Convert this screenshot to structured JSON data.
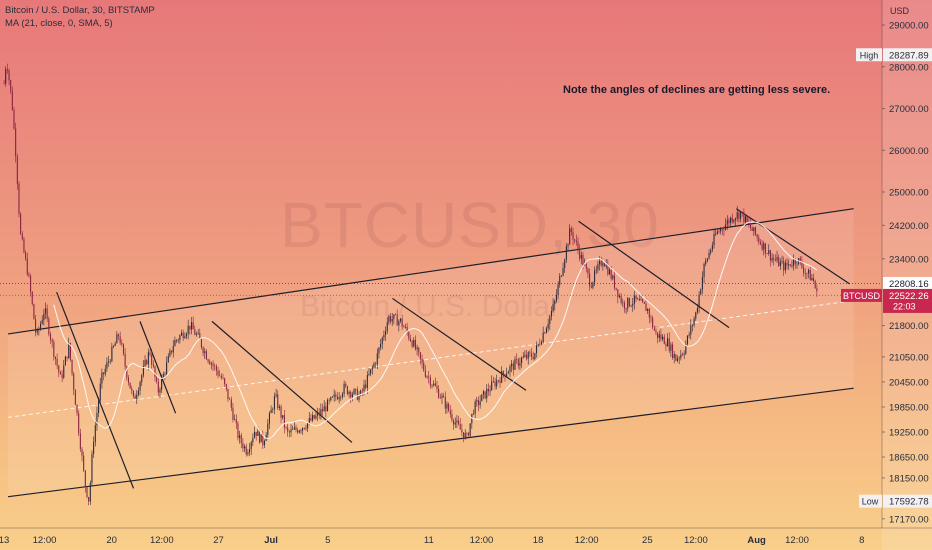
{
  "legend": {
    "title": "Bitcoin / U.S. Dollar, 30, BITSTAMP",
    "indicator": "MA (21, close, 0, SMA, 5)"
  },
  "annotation": "Note the angles of declines are getting less severe.",
  "watermark": {
    "main": "BTCUSD, 30",
    "sub": "Bitcoin / U.S. Dollar"
  },
  "colors": {
    "candle_up": "#2e2a3a",
    "candle_down": "#8b2440",
    "ma": "#ffffff",
    "line": "#1e1e2a",
    "price_tag": "#c8284f"
  },
  "chart_data": {
    "type": "candlestick",
    "symbol": "BTCUSD",
    "price_axis": {
      "unit_label": "USD",
      "ticks": [
        29000,
        28000,
        27000,
        26000,
        25000,
        24200,
        23400,
        21800,
        21050,
        20450,
        19850,
        19250,
        18650,
        18150,
        17170
      ],
      "ylim": [
        16950,
        29600
      ]
    },
    "time_axis": {
      "labels": [
        "13",
        "12:00",
        "20",
        "12:00",
        "27",
        "Jul",
        "5",
        "11",
        "12:00",
        "18",
        "12:00",
        "25",
        "12:00",
        "Aug",
        "12:00",
        "8"
      ],
      "positions": [
        0,
        0.5,
        1.33,
        1.95,
        2.65,
        3.3,
        4.0,
        5.25,
        5.9,
        6.6,
        7.2,
        7.95,
        8.55,
        9.3,
        9.8,
        10.6
      ],
      "xlim": [
        -0.05,
        10.85
      ]
    },
    "markers": {
      "high": {
        "label": "High",
        "value": "28287.89"
      },
      "low": {
        "label": "Low",
        "value": "17592.78"
      },
      "level": {
        "value": "22808.16"
      },
      "last": {
        "symbol": "BTCUSD",
        "value": "22522.26",
        "countdown": "22:03"
      }
    },
    "series": {
      "anchors": [
        [
          0,
          27600
        ],
        [
          0.03,
          28200
        ],
        [
          0.1,
          27100
        ],
        [
          0.15,
          25800
        ],
        [
          0.2,
          24000
        ],
        [
          0.3,
          23000
        ],
        [
          0.4,
          21500
        ],
        [
          0.5,
          22200
        ],
        [
          0.6,
          21300
        ],
        [
          0.7,
          20500
        ],
        [
          0.8,
          21300
        ],
        [
          0.9,
          19700
        ],
        [
          1.0,
          18000
        ],
        [
          1.05,
          17600
        ],
        [
          1.1,
          19000
        ],
        [
          1.2,
          20500
        ],
        [
          1.3,
          21000
        ],
        [
          1.42,
          21600
        ],
        [
          1.5,
          20800
        ],
        [
          1.6,
          20000
        ],
        [
          1.7,
          20600
        ],
        [
          1.8,
          21200
        ],
        [
          1.9,
          20200
        ],
        [
          2.0,
          20800
        ],
        [
          2.1,
          21400
        ],
        [
          2.3,
          21800
        ],
        [
          2.4,
          21500
        ],
        [
          2.5,
          21100
        ],
        [
          2.7,
          20500
        ],
        [
          2.8,
          19900
        ],
        [
          2.9,
          19100
        ],
        [
          3.0,
          18800
        ],
        [
          3.1,
          19300
        ],
        [
          3.2,
          19000
        ],
        [
          3.35,
          20100
        ],
        [
          3.5,
          19200
        ],
        [
          3.7,
          19400
        ],
        [
          3.85,
          19600
        ],
        [
          4.0,
          19900
        ],
        [
          4.2,
          20300
        ],
        [
          4.4,
          20100
        ],
        [
          4.6,
          21000
        ],
        [
          4.75,
          22000
        ],
        [
          4.9,
          21900
        ],
        [
          5.05,
          21400
        ],
        [
          5.2,
          20700
        ],
        [
          5.4,
          20100
        ],
        [
          5.6,
          19400
        ],
        [
          5.72,
          19100
        ],
        [
          5.8,
          19800
        ],
        [
          6.0,
          20300
        ],
        [
          6.2,
          20700
        ],
        [
          6.4,
          21000
        ],
        [
          6.55,
          21100
        ],
        [
          6.7,
          21800
        ],
        [
          6.8,
          22300
        ],
        [
          6.92,
          23400
        ],
        [
          7.0,
          24100
        ],
        [
          7.1,
          23600
        ],
        [
          7.25,
          22800
        ],
        [
          7.4,
          23400
        ],
        [
          7.5,
          23000
        ],
        [
          7.65,
          22300
        ],
        [
          7.8,
          22400
        ],
        [
          7.95,
          22200
        ],
        [
          8.05,
          21600
        ],
        [
          8.2,
          21400
        ],
        [
          8.3,
          21000
        ],
        [
          8.4,
          21200
        ],
        [
          8.55,
          22100
        ],
        [
          8.65,
          23200
        ],
        [
          8.8,
          24000
        ],
        [
          9.0,
          24400
        ],
        [
          9.1,
          24500
        ],
        [
          9.2,
          24200
        ],
        [
          9.35,
          23800
        ],
        [
          9.5,
          23400
        ],
        [
          9.65,
          23200
        ],
        [
          9.8,
          23400
        ],
        [
          9.9,
          23100
        ],
        [
          10.0,
          22900
        ],
        [
          10.05,
          22500
        ]
      ],
      "ma_start": 0.6
    },
    "drawings": {
      "channel_upper": [
        [
          0.05,
          21600
        ],
        [
          10.5,
          24600
        ]
      ],
      "channel_lower": [
        [
          0.05,
          17700
        ],
        [
          10.5,
          20300
        ]
      ],
      "mid_line": [
        [
          0.05,
          19600
        ],
        [
          10.5,
          22400
        ]
      ],
      "decline_lines": [
        [
          [
            0.65,
            22600
          ],
          [
            1.6,
            17900
          ]
        ],
        [
          [
            1.68,
            21900
          ],
          [
            2.12,
            19700
          ]
        ],
        [
          [
            2.57,
            21900
          ],
          [
            4.3,
            19000
          ]
        ],
        [
          [
            4.8,
            22450
          ],
          [
            6.45,
            20250
          ]
        ],
        [
          [
            7.1,
            24300
          ],
          [
            8.96,
            21750
          ]
        ],
        [
          [
            9.05,
            24600
          ],
          [
            10.45,
            22800
          ]
        ]
      ]
    }
  }
}
